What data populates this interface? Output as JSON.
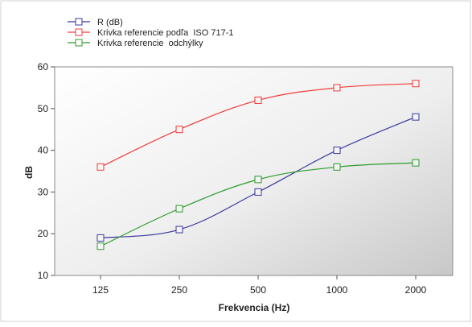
{
  "chart_data": {
    "type": "line",
    "title": "",
    "xlabel": "Frekvencia (Hz)",
    "ylabel": "dB",
    "categories": [
      "125",
      "250",
      "500",
      "1000",
      "2000"
    ],
    "ylim": [
      10,
      60
    ],
    "yticks": [
      10,
      20,
      30,
      40,
      50,
      60
    ],
    "grid": false,
    "legend_position": "top-left",
    "series": [
      {
        "name": "R (dB)",
        "color": "#3a3aa0",
        "values": [
          19,
          21,
          30,
          40,
          48
        ],
        "marker": "square"
      },
      {
        "name": "Krivka referencie podľa  ISO 717-1",
        "color": "#f03c3c",
        "values": [
          36,
          45,
          52,
          55,
          56
        ],
        "marker": "square"
      },
      {
        "name": "Krivka referencie  odchýlky",
        "color": "#2e9a2e",
        "values": [
          17,
          26,
          33,
          36,
          37
        ],
        "marker": "square"
      }
    ]
  }
}
